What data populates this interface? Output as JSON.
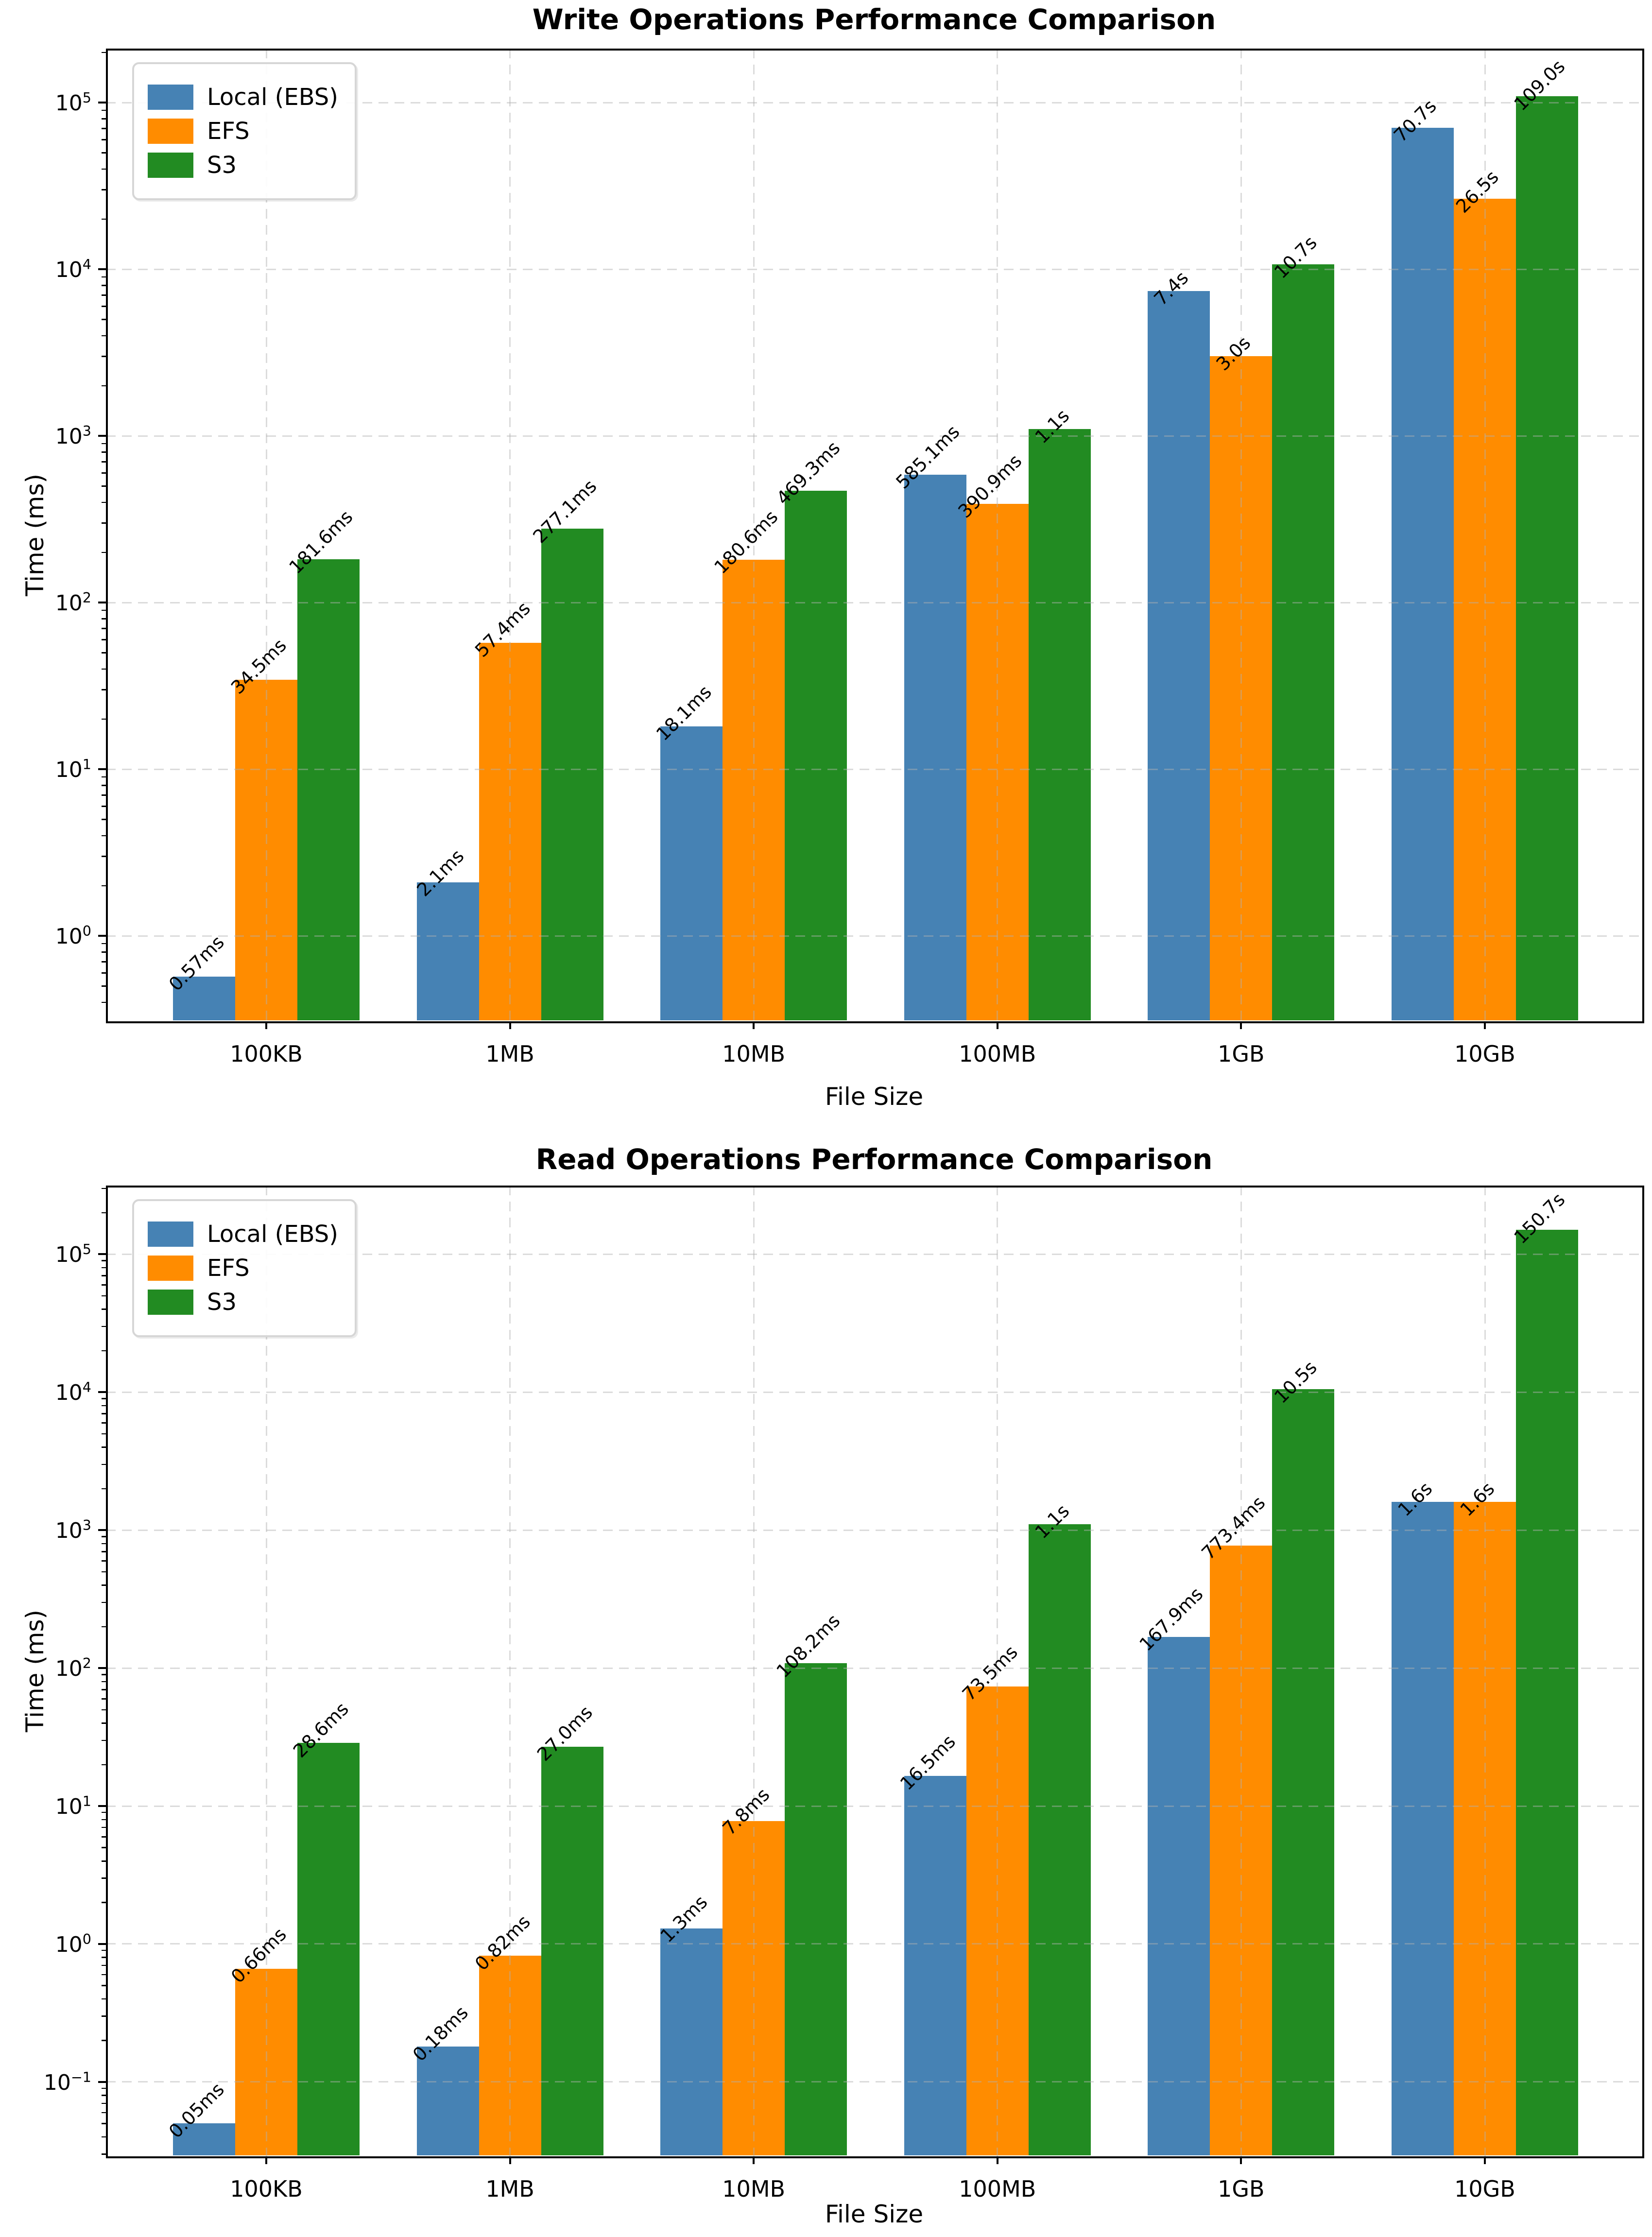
{
  "page": {
    "background": "#ffffff"
  },
  "colors": {
    "local_ebs": "#4682B4",
    "efs": "#FF8C00",
    "s3": "#228B22",
    "grid": "#b0b0b0",
    "spine": "#000000"
  },
  "chart_data": [
    {
      "type": "bar",
      "title": "Write Operations Performance Comparison",
      "xlabel": "File Size",
      "ylabel": "Time (ms)",
      "yscale": "log",
      "grid": true,
      "legend_position": "upper left",
      "legend_entries": [
        "Local (EBS)",
        "EFS",
        "S3"
      ],
      "categories": [
        "100KB",
        "1MB",
        "10MB",
        "100MB",
        "1GB",
        "10GB"
      ],
      "ytick_exponents": [
        0,
        1,
        2,
        3,
        4,
        5
      ],
      "ylim_log10": [
        -0.513,
        5.324
      ],
      "series": [
        {
          "name": "Local (EBS)",
          "color": "#4682B4",
          "values_ms": [
            0.57,
            2.1,
            18.1,
            585.1,
            7400,
            70700
          ],
          "labels": [
            "0.57ms",
            "2.1ms",
            "18.1ms",
            "585.1ms",
            "7.4s",
            "70.7s"
          ]
        },
        {
          "name": "EFS",
          "color": "#FF8C00",
          "values_ms": [
            34.5,
            57.4,
            180.6,
            390.9,
            3000,
            26500
          ],
          "labels": [
            "34.5ms",
            "57.4ms",
            "180.6ms",
            "390.9ms",
            "3.0s",
            "26.5s"
          ]
        },
        {
          "name": "S3",
          "color": "#228B22",
          "values_ms": [
            181.6,
            277.1,
            469.3,
            1100,
            10700,
            109000
          ],
          "labels": [
            "181.6ms",
            "277.1ms",
            "469.3ms",
            "1.1s",
            "10.7s",
            "109.0s"
          ]
        }
      ]
    },
    {
      "type": "bar",
      "title": "Read Operations Performance Comparison",
      "xlabel": "File Size",
      "ylabel": "Time (ms)",
      "yscale": "log",
      "grid": true,
      "legend_position": "upper left",
      "legend_entries": [
        "Local (EBS)",
        "EFS",
        "S3"
      ],
      "categories": [
        "100KB",
        "1MB",
        "10MB",
        "100MB",
        "1GB",
        "10GB"
      ],
      "ytick_exponents": [
        -1,
        0,
        1,
        2,
        3,
        4,
        5
      ],
      "ylim_log10": [
        -1.539,
        5.497
      ],
      "series": [
        {
          "name": "Local (EBS)",
          "color": "#4682B4",
          "values_ms": [
            0.05,
            0.18,
            1.3,
            16.5,
            167.9,
            1600
          ],
          "labels": [
            "0.05ms",
            "0.18ms",
            "1.3ms",
            "16.5ms",
            "167.9ms",
            "1.6s"
          ]
        },
        {
          "name": "EFS",
          "color": "#FF8C00",
          "values_ms": [
            0.66,
            0.82,
            7.8,
            73.5,
            773.4,
            1600
          ],
          "labels": [
            "0.66ms",
            "0.82ms",
            "7.8ms",
            "73.5ms",
            "773.4ms",
            "1.6s"
          ]
        },
        {
          "name": "S3",
          "color": "#228B22",
          "values_ms": [
            28.6,
            27.0,
            108.2,
            1100,
            10500,
            150700
          ],
          "labels": [
            "28.6ms",
            "27.0ms",
            "108.2ms",
            "1.1s",
            "10.5s",
            "150.7s"
          ]
        }
      ]
    }
  ]
}
